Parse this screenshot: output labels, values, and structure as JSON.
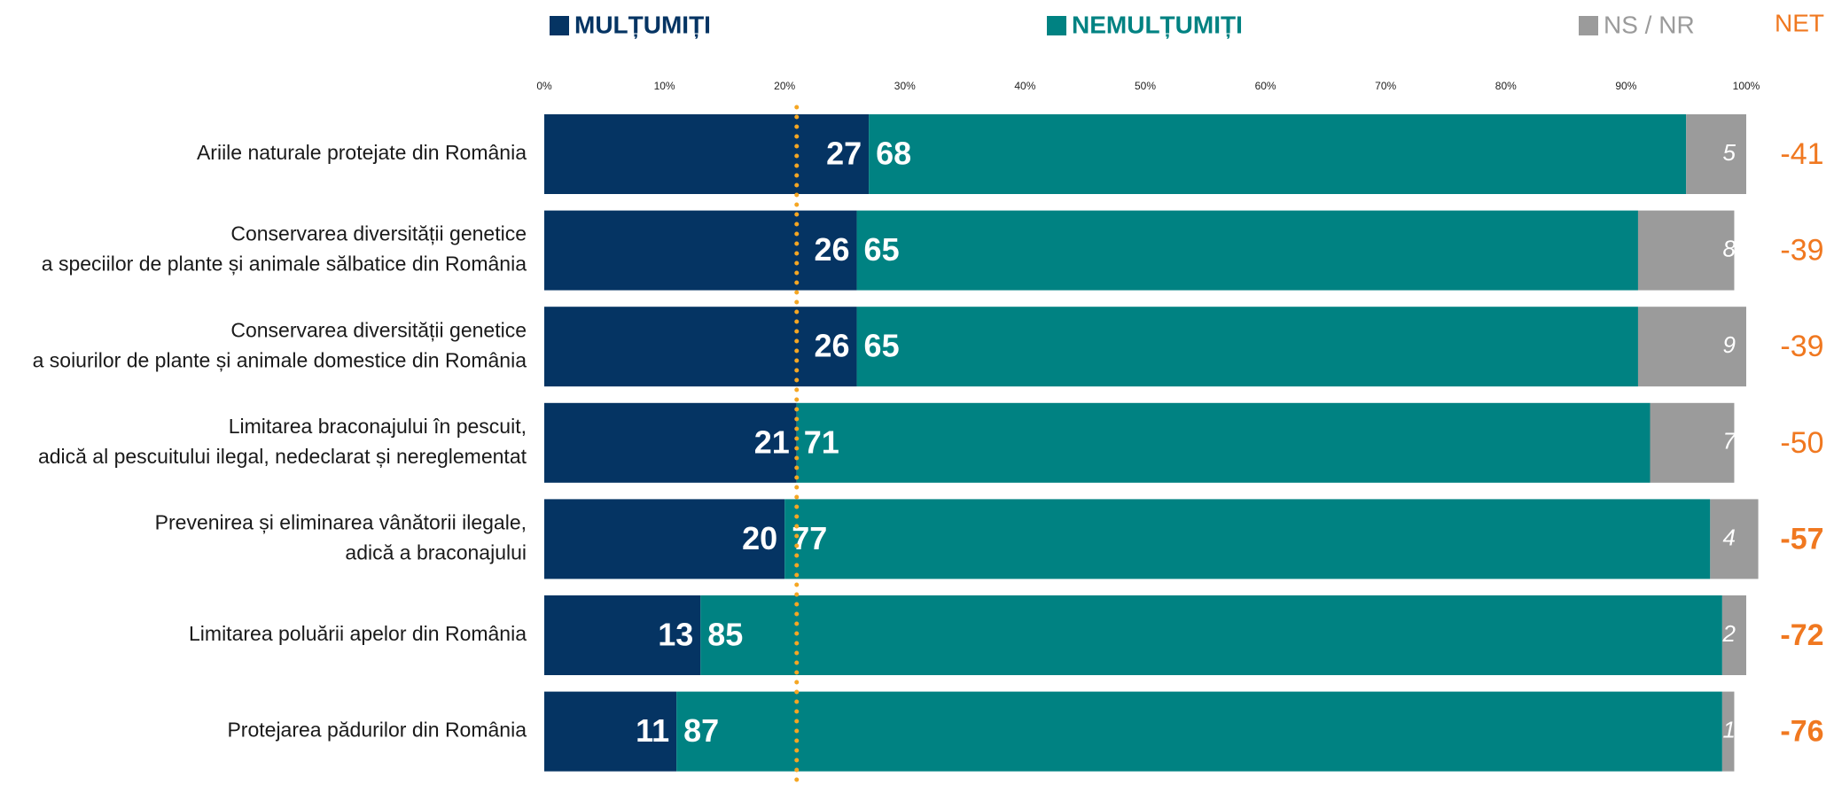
{
  "chart_data": {
    "type": "stacked-bar-horizontal",
    "categories": [
      [
        "Ariile naturale protejate din România"
      ],
      [
        "Conservarea diversității genetice",
        "a speciilor de plante și animale sălbatice din România"
      ],
      [
        "Conservarea diversității genetice",
        "a soiurilor de plante și animale domestice din România"
      ],
      [
        "Limitarea braconajului în pescuit,",
        "adică al pescuitului ilegal, nedeclarat și nereglementat"
      ],
      [
        "Prevenirea și eliminarea vânătorii ilegale,",
        "adică a braconajului"
      ],
      [
        "Limitarea poluării apelor din România"
      ],
      [
        "Protejarea pădurilor din România"
      ]
    ],
    "series": [
      {
        "name": "MULȚUMIȚI",
        "color": "#053463",
        "values": [
          27,
          26,
          26,
          21,
          20,
          13,
          11
        ]
      },
      {
        "name": "NEMULȚUMIȚI",
        "color": "#008282",
        "values": [
          68,
          65,
          65,
          71,
          77,
          85,
          87
        ]
      },
      {
        "name": "NS / NR",
        "color": "#9b9b9b",
        "values": [
          5,
          8,
          9,
          7,
          4,
          2,
          1
        ]
      }
    ],
    "net": {
      "title": "NET",
      "color": "#f07820",
      "values": [
        -41,
        -39,
        -39,
        -50,
        -57,
        -72,
        -76
      ],
      "bold": [
        false,
        false,
        false,
        false,
        true,
        true,
        true
      ]
    },
    "reference_line": {
      "value": 21,
      "color": "#f5a623"
    },
    "xlim": [
      0,
      100
    ],
    "xticks": [
      {
        "value": 0,
        "label": "0%"
      },
      {
        "value": 10,
        "label": "10%"
      },
      {
        "value": 20,
        "label": "20%"
      },
      {
        "value": 30,
        "label": "30%"
      },
      {
        "value": 40,
        "label": "40%"
      },
      {
        "value": 50,
        "label": "50%"
      },
      {
        "value": 60,
        "label": "60%"
      },
      {
        "value": 70,
        "label": "70%"
      },
      {
        "value": 80,
        "label": "80%"
      },
      {
        "value": 90,
        "label": "90%"
      },
      {
        "value": 100,
        "label": "100%"
      }
    ]
  }
}
